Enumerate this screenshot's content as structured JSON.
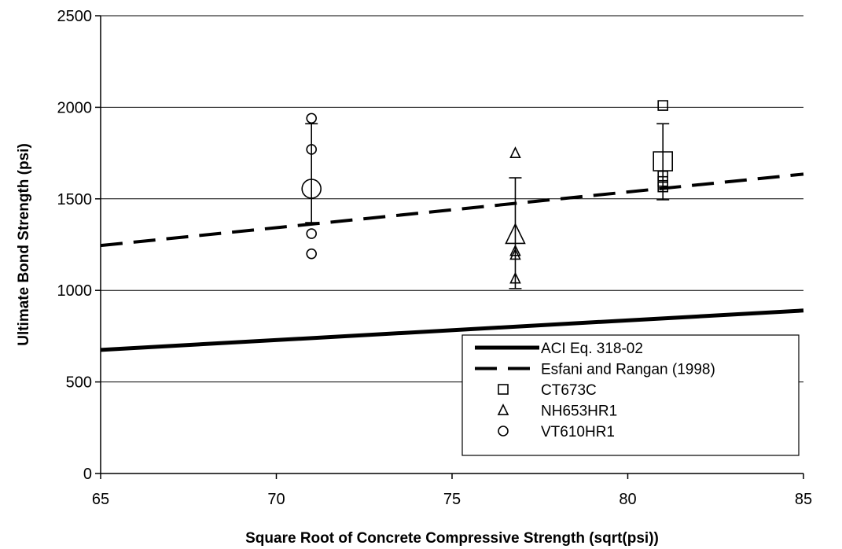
{
  "chart_data": {
    "type": "scatter",
    "title": "",
    "xlabel": "Square Root of Concrete Compressive Strength (sqrt(psi))",
    "ylabel": "Ultimate Bond Strength (psi)",
    "xlim": [
      65,
      85
    ],
    "ylim": [
      0,
      2500
    ],
    "x_ticks": [
      65,
      70,
      75,
      80,
      85
    ],
    "y_ticks": [
      0,
      500,
      1000,
      1500,
      2000,
      2500
    ],
    "grid": "horizontal",
    "legend_position": "bottom-right",
    "lines": [
      {
        "name": "ACI Eq. 318-02",
        "style": "solid",
        "points": [
          [
            65,
            675
          ],
          [
            85,
            890
          ]
        ]
      },
      {
        "name": "Esfani and Rangan (1998)",
        "style": "dashed",
        "points": [
          [
            65,
            1245
          ],
          [
            85,
            1635
          ]
        ]
      }
    ],
    "series": [
      {
        "name": "CT673C",
        "marker": "square",
        "x": [
          81,
          81,
          81,
          81
        ],
        "y": [
          2010,
          1625,
          1595,
          1565
        ],
        "mean": {
          "x": 81,
          "y": 1705
        },
        "error_bar": [
          1495,
          1910
        ]
      },
      {
        "name": "NH653HR1",
        "marker": "triangle",
        "x": [
          76.8,
          76.8,
          76.8,
          76.8
        ],
        "y": [
          1750,
          1215,
          1195,
          1065
        ],
        "mean": {
          "x": 76.8,
          "y": 1305
        },
        "error_bar": [
          1010,
          1615
        ]
      },
      {
        "name": "VT610HR1",
        "marker": "circle",
        "x": [
          71,
          71,
          71,
          71
        ],
        "y": [
          1940,
          1770,
          1310,
          1200
        ],
        "mean": {
          "x": 71,
          "y": 1555
        },
        "error_bar": [
          1370,
          1910
        ]
      }
    ]
  }
}
